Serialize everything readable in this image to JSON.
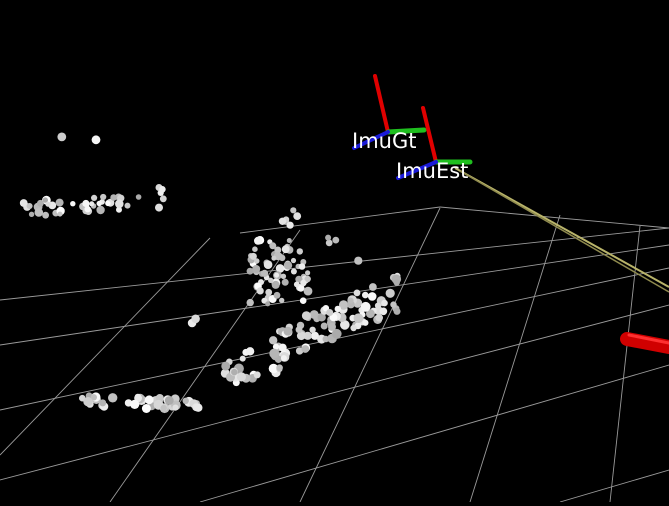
{
  "scene": {
    "background": "#000000",
    "grid_color": "#9a9a9a",
    "point_color": "#e6e6e6",
    "axis_x_color": "#e00000",
    "axis_y_color": "#1fbf1f",
    "axis_z_color": "#1a1ad8",
    "trajectory_color": "#b9b46a",
    "frames": [
      {
        "id": "gt",
        "label": "ImuGt"
      },
      {
        "id": "est",
        "label": "ImuEst"
      }
    ]
  }
}
